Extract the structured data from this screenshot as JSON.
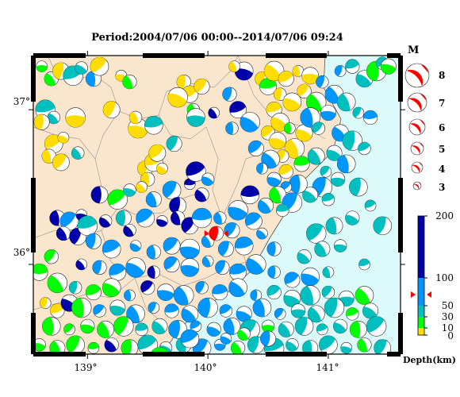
{
  "title": "Period:2004/07/06 00:00--2014/07/06 09:24",
  "map": {
    "lon_range": [
      138.55,
      141.6
    ],
    "lat_range": [
      35.42,
      37.35
    ],
    "lon_ticks": [
      {
        "value": 139,
        "label": "139°"
      },
      {
        "value": 140,
        "label": "140°"
      },
      {
        "value": 141,
        "label": "141°"
      }
    ],
    "lat_ticks": [
      {
        "value": 37,
        "label": "37°"
      },
      {
        "value": 36,
        "label": "36°"
      }
    ],
    "land_color": "#fae6cc",
    "sea_color": "#ddfafa",
    "border_color": "#a0a0a0",
    "featured_event": {
      "lon": 140.07,
      "lat": 36.2,
      "color": "#ff0000"
    },
    "events": [
      [
        138.62,
        37.28,
        "#00ff00"
      ],
      [
        138.7,
        37.2,
        "#00ff00"
      ],
      [
        138.78,
        37.25,
        "#ffdd00"
      ],
      [
        138.88,
        37.22,
        "#00bfbf"
      ],
      [
        138.95,
        37.27,
        "#00bfbf"
      ],
      [
        139.05,
        37.2,
        "#0096ff"
      ],
      [
        139.1,
        37.28,
        "#ffdd00"
      ],
      [
        139.28,
        37.22,
        "#ffdd00"
      ],
      [
        139.35,
        37.18,
        "#00ff00"
      ],
      [
        139.2,
        37.0,
        "#ffdd00"
      ],
      [
        138.65,
        37.0,
        "#00bfbf"
      ],
      [
        138.72,
        36.95,
        "#00bfbf"
      ],
      [
        138.62,
        36.92,
        "#ffdd00"
      ],
      [
        138.72,
        36.78,
        "#ffdd00"
      ],
      [
        138.8,
        36.82,
        "#ffdd00"
      ],
      [
        138.68,
        36.7,
        "#ffdd00"
      ],
      [
        138.78,
        36.66,
        "#ffdd00"
      ],
      [
        138.9,
        36.95,
        "#ffdd00"
      ],
      [
        138.92,
        36.72,
        "#00bfbf"
      ],
      [
        139.48,
        36.62,
        "#ffdd00"
      ],
      [
        139.55,
        36.66,
        "#ffdd00"
      ],
      [
        139.62,
        36.62,
        "#ffdd00"
      ],
      [
        139.5,
        36.55,
        "#ffdd00"
      ],
      [
        139.58,
        36.72,
        "#ffdd00"
      ],
      [
        139.42,
        36.88,
        "#ffdd00"
      ],
      [
        139.4,
        36.95,
        "#ffdd00"
      ],
      [
        139.72,
        36.78,
        "#00bfbf"
      ],
      [
        139.55,
        36.9,
        "#00bfbf"
      ],
      [
        139.45,
        36.5,
        "#ffdd00"
      ],
      [
        139.8,
        37.18,
        "#ffdd00"
      ],
      [
        139.85,
        37.1,
        "#ffdd00"
      ],
      [
        139.75,
        37.08,
        "#ffdd00"
      ],
      [
        139.88,
        37.0,
        "#00ff00"
      ],
      [
        139.95,
        37.15,
        "#ffdd00"
      ],
      [
        139.9,
        36.95,
        "#00bfbf"
      ],
      [
        140.05,
        36.98,
        "#0000aa"
      ],
      [
        140.18,
        37.1,
        "#0096ff"
      ],
      [
        140.25,
        37.0,
        "#0000aa"
      ],
      [
        140.35,
        36.92,
        "#0096ff"
      ],
      [
        140.2,
        36.88,
        "#0096ff"
      ],
      [
        140.4,
        36.75,
        "#0096ff"
      ],
      [
        140.3,
        37.25,
        "#0000aa"
      ],
      [
        140.22,
        37.28,
        "#ffdd00"
      ],
      [
        140.45,
        37.2,
        "#ffdd00"
      ],
      [
        140.5,
        37.15,
        "#00ff00"
      ],
      [
        140.55,
        37.25,
        "#ffdd00"
      ],
      [
        140.6,
        37.1,
        "#ffdd00"
      ],
      [
        140.65,
        37.2,
        "#ffdd00"
      ],
      [
        140.7,
        37.05,
        "#ffdd00"
      ],
      [
        140.75,
        37.25,
        "#ffdd00"
      ],
      [
        140.8,
        37.12,
        "#ffdd00"
      ],
      [
        140.85,
        37.22,
        "#ffdd00"
      ],
      [
        140.9,
        37.05,
        "#00ff00"
      ],
      [
        140.95,
        37.18,
        "#0096ff"
      ],
      [
        140.55,
        37.0,
        "#ffdd00"
      ],
      [
        140.6,
        36.92,
        "#ffdd00"
      ],
      [
        140.68,
        36.88,
        "#00ff00"
      ],
      [
        140.5,
        36.85,
        "#ffdd00"
      ],
      [
        140.58,
        36.8,
        "#ffdd00"
      ],
      [
        140.72,
        36.75,
        "#ffdd00"
      ],
      [
        140.62,
        36.7,
        "#ffdd00"
      ],
      [
        140.78,
        36.65,
        "#00ff00"
      ],
      [
        140.52,
        36.68,
        "#0096ff"
      ],
      [
        140.45,
        36.62,
        "#0096ff"
      ],
      [
        140.65,
        36.6,
        "#ffdd00"
      ],
      [
        140.8,
        36.85,
        "#ffdd00"
      ],
      [
        140.85,
        36.95,
        "#0096ff"
      ],
      [
        140.92,
        36.88,
        "#00bfbf"
      ],
      [
        141.0,
        36.98,
        "#0096ff"
      ],
      [
        141.05,
        37.1,
        "#0096ff"
      ],
      [
        141.1,
        37.25,
        "#0096ff"
      ],
      [
        141.2,
        37.28,
        "#00bfbf"
      ],
      [
        141.3,
        37.2,
        "#00bfbf"
      ],
      [
        141.4,
        37.25,
        "#00ff00"
      ],
      [
        141.45,
        37.3,
        "#00bfbf"
      ],
      [
        141.5,
        37.28,
        "#00ff00"
      ],
      [
        141.15,
        37.05,
        "#00bfbf"
      ],
      [
        141.25,
        36.98,
        "#00bfbf"
      ],
      [
        141.35,
        36.95,
        "#0096ff"
      ],
      [
        141.1,
        36.85,
        "#0096ff"
      ],
      [
        141.2,
        36.8,
        "#00bfbf"
      ],
      [
        141.3,
        36.75,
        "#00bfbf"
      ],
      [
        141.05,
        36.72,
        "#00bfbf"
      ],
      [
        141.15,
        36.65,
        "#0096ff"
      ],
      [
        140.98,
        36.6,
        "#00bfbf"
      ],
      [
        141.08,
        36.55,
        "#00bfbf"
      ],
      [
        140.9,
        36.7,
        "#00bfbf"
      ],
      [
        140.95,
        36.5,
        "#0096ff"
      ],
      [
        141.0,
        36.42,
        "#00bfbf"
      ],
      [
        140.85,
        36.45,
        "#00bfbf"
      ],
      [
        140.75,
        36.52,
        "#0096ff"
      ],
      [
        140.65,
        36.5,
        "#0096ff"
      ],
      [
        140.55,
        36.55,
        "#0096ff"
      ],
      [
        140.58,
        36.45,
        "#00ff00"
      ],
      [
        140.7,
        36.4,
        "#0096ff"
      ],
      [
        140.62,
        36.35,
        "#00bfbf"
      ],
      [
        140.48,
        36.38,
        "#0096ff"
      ],
      [
        141.25,
        36.5,
        "#00bfbf"
      ],
      [
        141.35,
        36.38,
        "#00bfbf"
      ],
      [
        141.2,
        36.3,
        "#00bfbf"
      ],
      [
        141.05,
        36.25,
        "#00bfbf"
      ],
      [
        140.9,
        36.2,
        "#00bfbf"
      ],
      [
        141.1,
        36.12,
        "#00bfbf"
      ],
      [
        140.95,
        36.1,
        "#00bfbf"
      ],
      [
        141.45,
        36.25,
        "#00bfbf"
      ],
      [
        141.3,
        36.0,
        "#00bfbf"
      ],
      [
        140.8,
        36.05,
        "#00bfbf"
      ],
      [
        139.1,
        36.45,
        "#0000aa"
      ],
      [
        139.25,
        36.42,
        "#00ff00"
      ],
      [
        139.35,
        36.48,
        "#00bfbf"
      ],
      [
        139.55,
        36.42,
        "#0096ff"
      ],
      [
        139.7,
        36.48,
        "#0096ff"
      ],
      [
        139.85,
        36.52,
        "#0000aa"
      ],
      [
        139.95,
        36.45,
        "#0000aa"
      ],
      [
        139.75,
        36.38,
        "#0000aa"
      ],
      [
        139.9,
        36.6,
        "#0000aa"
      ],
      [
        140.0,
        36.55,
        "#0096ff"
      ],
      [
        138.75,
        36.3,
        "#0000aa"
      ],
      [
        138.85,
        36.28,
        "#0096ff"
      ],
      [
        138.95,
        36.32,
        "#0000aa"
      ],
      [
        138.8,
        36.2,
        "#0000aa"
      ],
      [
        138.92,
        36.18,
        "#0000aa"
      ],
      [
        139.0,
        36.25,
        "#00bfbf"
      ],
      [
        139.15,
        36.28,
        "#0000aa"
      ],
      [
        139.3,
        36.3,
        "#00bfbf"
      ],
      [
        139.48,
        36.3,
        "#0096ff"
      ],
      [
        139.62,
        36.28,
        "#0000aa"
      ],
      [
        139.75,
        36.3,
        "#0000aa"
      ],
      [
        139.85,
        36.25,
        "#0000aa"
      ],
      [
        139.95,
        36.3,
        "#0096ff"
      ],
      [
        139.35,
        36.22,
        "#0000aa"
      ],
      [
        139.05,
        36.15,
        "#0096ff"
      ],
      [
        139.2,
        36.1,
        "#0096ff"
      ],
      [
        139.4,
        36.12,
        "#0096ff"
      ],
      [
        139.55,
        36.08,
        "#0096ff"
      ],
      [
        139.7,
        36.12,
        "#0096ff"
      ],
      [
        139.85,
        36.1,
        "#0096ff"
      ],
      [
        140.0,
        36.15,
        "#0096ff"
      ],
      [
        140.15,
        36.1,
        "#0096ff"
      ],
      [
        140.3,
        36.12,
        "#0096ff"
      ],
      [
        140.45,
        36.2,
        "#0096ff"
      ],
      [
        140.55,
        36.1,
        "#0096ff"
      ],
      [
        140.38,
        36.28,
        "#0096ff"
      ],
      [
        140.25,
        36.35,
        "#0096ff"
      ],
      [
        140.1,
        36.3,
        "#0096ff"
      ],
      [
        140.2,
        36.22,
        "#0096ff"
      ],
      [
        140.35,
        36.45,
        "#0000aa"
      ],
      [
        138.95,
        36.0,
        "#0000aa"
      ],
      [
        139.1,
        35.98,
        "#0096ff"
      ],
      [
        139.25,
        35.95,
        "#0096ff"
      ],
      [
        139.4,
        35.98,
        "#0096ff"
      ],
      [
        139.55,
        35.95,
        "#0000aa"
      ],
      [
        139.7,
        36.0,
        "#0096ff"
      ],
      [
        139.85,
        35.98,
        "#0096ff"
      ],
      [
        140.0,
        36.02,
        "#0096ff"
      ],
      [
        140.12,
        35.98,
        "#0096ff"
      ],
      [
        140.25,
        35.95,
        "#0096ff"
      ],
      [
        140.4,
        36.0,
        "#0096ff"
      ],
      [
        140.55,
        35.95,
        "#0096ff"
      ],
      [
        140.7,
        35.9,
        "#0096ff"
      ],
      [
        140.85,
        35.92,
        "#0096ff"
      ],
      [
        141.0,
        35.95,
        "#00bfbf"
      ],
      [
        138.7,
        36.05,
        "#00ff00"
      ],
      [
        138.6,
        35.95,
        "#00ff00"
      ],
      [
        138.75,
        35.88,
        "#00ff00"
      ],
      [
        138.9,
        35.85,
        "#00bfbf"
      ],
      [
        139.05,
        35.82,
        "#00ff00"
      ],
      [
        139.2,
        35.85,
        "#00ff00"
      ],
      [
        139.35,
        35.8,
        "#0096ff"
      ],
      [
        139.5,
        35.85,
        "#0000aa"
      ],
      [
        139.65,
        35.82,
        "#0096ff"
      ],
      [
        139.8,
        35.8,
        "#0096ff"
      ],
      [
        139.95,
        35.85,
        "#0096ff"
      ],
      [
        140.1,
        35.82,
        "#0096ff"
      ],
      [
        140.25,
        35.85,
        "#0096ff"
      ],
      [
        140.4,
        35.8,
        "#0096ff"
      ],
      [
        140.55,
        35.82,
        "#00bfbf"
      ],
      [
        140.7,
        35.78,
        "#00bfbf"
      ],
      [
        140.85,
        35.8,
        "#00bfbf"
      ],
      [
        141.0,
        35.82,
        "#00bfbf"
      ],
      [
        141.15,
        35.78,
        "#00bfbf"
      ],
      [
        141.3,
        35.8,
        "#00ff00"
      ],
      [
        138.65,
        35.75,
        "#ffdd00"
      ],
      [
        138.75,
        35.7,
        "#ffdd00"
      ],
      [
        138.85,
        35.75,
        "#0000aa"
      ],
      [
        138.95,
        35.72,
        "#00ff00"
      ],
      [
        139.1,
        35.7,
        "#0096ff"
      ],
      [
        139.25,
        35.72,
        "#00bfbf"
      ],
      [
        139.4,
        35.68,
        "#0096ff"
      ],
      [
        139.55,
        35.72,
        "#0096ff"
      ],
      [
        139.7,
        35.7,
        "#0096ff"
      ],
      [
        139.85,
        35.68,
        "#0096ff"
      ],
      [
        140.0,
        35.72,
        "#0096ff"
      ],
      [
        140.15,
        35.7,
        "#0096ff"
      ],
      [
        140.3,
        35.68,
        "#0096ff"
      ],
      [
        140.45,
        35.72,
        "#0096ff"
      ],
      [
        140.6,
        35.68,
        "#0096ff"
      ],
      [
        140.75,
        35.7,
        "#00bfbf"
      ],
      [
        140.9,
        35.68,
        "#00bfbf"
      ],
      [
        141.05,
        35.72,
        "#00bfbf"
      ],
      [
        141.2,
        35.68,
        "#00ff00"
      ],
      [
        141.35,
        35.7,
        "#00bfbf"
      ],
      [
        138.7,
        35.6,
        "#00ff00"
      ],
      [
        138.85,
        35.58,
        "#00ff00"
      ],
      [
        139.0,
        35.6,
        "#00ff00"
      ],
      [
        139.15,
        35.58,
        "#00ff00"
      ],
      [
        139.3,
        35.6,
        "#00ff00"
      ],
      [
        139.45,
        35.58,
        "#00bfbf"
      ],
      [
        139.6,
        35.6,
        "#00bfbf"
      ],
      [
        139.75,
        35.58,
        "#0096ff"
      ],
      [
        139.9,
        35.6,
        "#0096ff"
      ],
      [
        140.05,
        35.58,
        "#0096ff"
      ],
      [
        140.2,
        35.6,
        "#0096ff"
      ],
      [
        140.35,
        35.58,
        "#00bfbf"
      ],
      [
        140.5,
        35.6,
        "#00ff00"
      ],
      [
        140.65,
        35.58,
        "#00bfbf"
      ],
      [
        140.8,
        35.6,
        "#00bfbf"
      ],
      [
        140.95,
        35.58,
        "#00bfbf"
      ],
      [
        141.1,
        35.6,
        "#00bfbf"
      ],
      [
        141.25,
        35.58,
        "#00ff00"
      ],
      [
        141.4,
        35.6,
        "#00bfbf"
      ],
      [
        138.6,
        35.48,
        "#00ff00"
      ],
      [
        138.75,
        35.46,
        "#00ff00"
      ],
      [
        138.9,
        35.48,
        "#00ff00"
      ],
      [
        139.05,
        35.46,
        "#00ff00"
      ],
      [
        139.2,
        35.48,
        "#0000aa"
      ],
      [
        139.35,
        35.46,
        "#00ff00"
      ],
      [
        139.5,
        35.48,
        "#00bfbf"
      ],
      [
        139.65,
        35.46,
        "#00bfbf"
      ],
      [
        139.8,
        35.48,
        "#00bfbf"
      ],
      [
        139.95,
        35.46,
        "#0096ff"
      ],
      [
        140.1,
        35.48,
        "#0096ff"
      ],
      [
        140.25,
        35.46,
        "#00ff00"
      ],
      [
        140.4,
        35.48,
        "#00bfbf"
      ],
      [
        140.55,
        35.46,
        "#00bfbf"
      ],
      [
        140.7,
        35.48,
        "#00bfbf"
      ],
      [
        140.85,
        35.46,
        "#00bfbf"
      ],
      [
        141.0,
        35.48,
        "#00bfbf"
      ],
      [
        141.15,
        35.46,
        "#00bfbf"
      ],
      [
        141.3,
        35.48,
        "#00ff00"
      ],
      [
        141.45,
        35.46,
        "#00bfbf"
      ],
      [
        139.6,
        35.4,
        "#00ff00"
      ],
      [
        140.3,
        35.55,
        "#00ff00"
      ],
      [
        140.5,
        35.52,
        "#0096ff"
      ],
      [
        139.85,
        35.52,
        "#0096ff"
      ],
      [
        140.15,
        35.52,
        "#0096ff"
      ]
    ]
  },
  "legend": {
    "magnitude_title": "M",
    "magnitudes": [
      {
        "label": "8"
      },
      {
        "label": "7"
      },
      {
        "label": "6"
      },
      {
        "label": "5"
      },
      {
        "label": "4"
      },
      {
        "label": "3"
      }
    ],
    "ball_color": "#ff0000",
    "depth_title": "Depth(km)",
    "depth_ticks": [
      {
        "label": "200",
        "value": 200
      },
      {
        "label": "100",
        "value": 100
      },
      {
        "label": "50",
        "value": 50
      },
      {
        "label": "30",
        "value": 30
      },
      {
        "label": "10",
        "value": 10
      },
      {
        "label": "0",
        "value": 0
      }
    ],
    "featured_depth": 70,
    "colors": {
      "deep": "#0000aa",
      "mid": "#0096ff",
      "shallow2": "#00bfbf",
      "shallow1": "#00ff00",
      "surface": "#ffdd00"
    }
  }
}
